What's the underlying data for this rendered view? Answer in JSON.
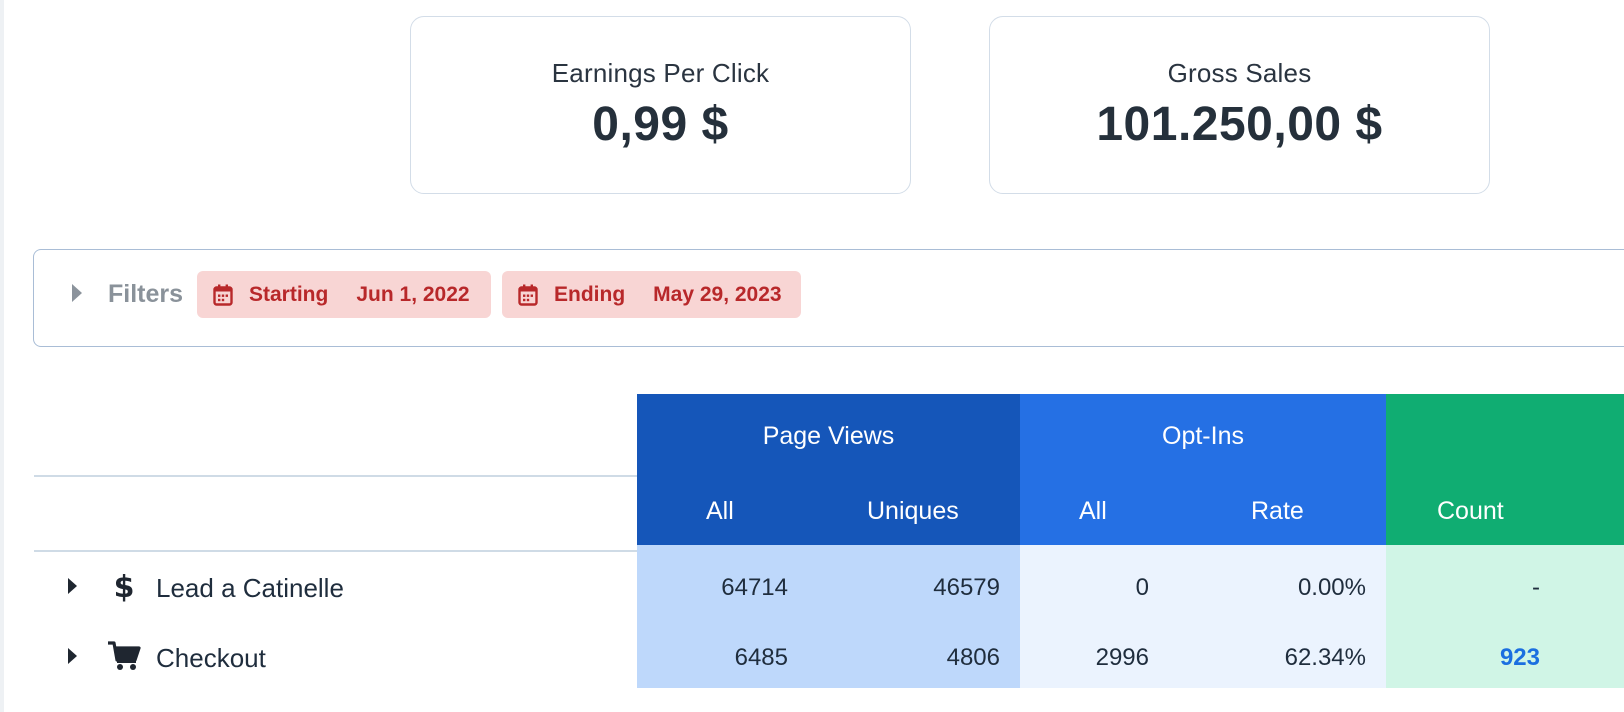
{
  "cards": {
    "epc": {
      "label": "Earnings Per Click",
      "value": "0,99 $"
    },
    "gross": {
      "label": "Gross Sales",
      "value": "101.250,00 $"
    }
  },
  "filters": {
    "label": "Filters",
    "start": {
      "key": "Starting",
      "value": "Jun 1, 2022",
      "icon": "calendar-icon"
    },
    "end": {
      "key": "Ending",
      "value": "May 29, 2023",
      "icon": "calendar-icon"
    }
  },
  "table": {
    "groups": {
      "page_views": {
        "title": "Page Views",
        "cols": [
          "All",
          "Uniques"
        ]
      },
      "opt_ins": {
        "title": "Opt-Ins",
        "cols": [
          "All",
          "Rate"
        ]
      },
      "sales": {
        "cols": [
          "Count"
        ]
      }
    },
    "rows": [
      {
        "icon": "dollar-icon",
        "label": "Lead a Catinelle",
        "pv_all": "64714",
        "pv_uniques": "46579",
        "oi_all": "0",
        "oi_rate": "0.00%",
        "count": "-"
      },
      {
        "icon": "shopping-cart-icon",
        "label": "Checkout",
        "pv_all": "6485",
        "pv_uniques": "4806",
        "oi_all": "2996",
        "oi_rate": "62.34%",
        "count": "923"
      }
    ]
  },
  "colors": {
    "page_views_header": "#1556b9",
    "opt_ins_header": "#2570e4",
    "sales_header": "#10ad72",
    "chip_bg": "#f8d5d4",
    "chip_text": "#b8282a",
    "link": "#1b6fe0"
  }
}
